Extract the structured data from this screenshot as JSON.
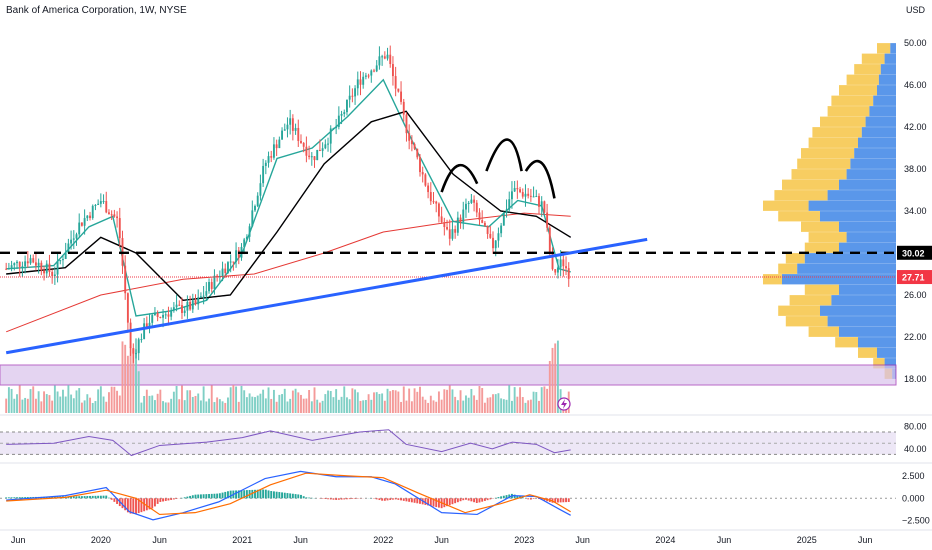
{
  "chart_data": {
    "type": "candlestick",
    "title": "Bank of America Corporation, 1W, NYSE",
    "currency": "USD",
    "x_axis": {
      "tick_labels": [
        "Jun",
        "2020",
        "Jun",
        "2021",
        "Jun",
        "2022",
        "Jun",
        "2023",
        "Jun",
        "2024",
        "Jun",
        "2025",
        "Jun"
      ],
      "tick_dates": [
        "2019-06-01",
        "2020-01-01",
        "2020-06-01",
        "2021-01-01",
        "2021-06-01",
        "2022-01-01",
        "2022-06-01",
        "2023-01-01",
        "2023-06-01",
        "2024-01-01",
        "2024-06-01",
        "2025-01-01",
        "2025-06-01"
      ]
    },
    "price_axis": {
      "ticks": [
        18.0,
        22.0,
        26.0,
        30.02,
        34.0,
        38.0,
        42.0,
        46.0,
        50.0
      ],
      "tick_labels": [
        "18.00",
        "22.00",
        "26.00",
        "30.02",
        "34.00",
        "38.00",
        "42.00",
        "46.00",
        "50.00"
      ],
      "ylim": [
        17,
        50.5
      ]
    },
    "price_series": [
      {
        "date": "2019-05-01",
        "close": 28.5
      },
      {
        "date": "2019-07-01",
        "close": 29.5
      },
      {
        "date": "2019-09-01",
        "close": 28.0
      },
      {
        "date": "2019-11-01",
        "close": 32.5
      },
      {
        "date": "2020-01-01",
        "close": 35.0
      },
      {
        "date": "2020-02-15",
        "close": 33.0
      },
      {
        "date": "2020-03-20",
        "close": 20.0
      },
      {
        "date": "2020-05-01",
        "close": 23.5
      },
      {
        "date": "2020-07-01",
        "close": 24.5
      },
      {
        "date": "2020-09-01",
        "close": 25.0
      },
      {
        "date": "2020-11-01",
        "close": 28.0
      },
      {
        "date": "2021-01-01",
        "close": 30.5
      },
      {
        "date": "2021-03-01",
        "close": 38.5
      },
      {
        "date": "2021-05-01",
        "close": 42.5
      },
      {
        "date": "2021-07-01",
        "close": 39.0
      },
      {
        "date": "2021-09-01",
        "close": 42.0
      },
      {
        "date": "2021-11-01",
        "close": 46.5
      },
      {
        "date": "2022-01-10",
        "close": 49.0
      },
      {
        "date": "2022-03-01",
        "close": 42.0
      },
      {
        "date": "2022-05-01",
        "close": 35.5
      },
      {
        "date": "2022-06-20",
        "close": 31.5
      },
      {
        "date": "2022-08-15",
        "close": 35.0
      },
      {
        "date": "2022-10-10",
        "close": 30.5
      },
      {
        "date": "2022-12-01",
        "close": 36.0
      },
      {
        "date": "2023-01-15",
        "close": 35.5
      },
      {
        "date": "2023-02-20",
        "close": 34.5
      },
      {
        "date": "2023-03-15",
        "close": 28.0
      },
      {
        "date": "2023-04-10",
        "close": 29.2
      },
      {
        "date": "2023-05-01",
        "close": 27.8
      }
    ],
    "ma_fast": [
      {
        "date": "2019-05-01",
        "v": 28.5
      },
      {
        "date": "2019-09-01",
        "v": 28.8
      },
      {
        "date": "2019-12-01",
        "v": 32.5
      },
      {
        "date": "2020-02-01",
        "v": 33.5
      },
      {
        "date": "2020-04-01",
        "v": 24.0
      },
      {
        "date": "2020-07-01",
        "v": 24.5
      },
      {
        "date": "2020-10-01",
        "v": 25.5
      },
      {
        "date": "2021-01-01",
        "v": 30.0
      },
      {
        "date": "2021-04-01",
        "v": 39.0
      },
      {
        "date": "2021-07-01",
        "v": 40.0
      },
      {
        "date": "2021-10-01",
        "v": 43.0
      },
      {
        "date": "2022-01-01",
        "v": 46.5
      },
      {
        "date": "2022-04-01",
        "v": 39.5
      },
      {
        "date": "2022-07-01",
        "v": 33.0
      },
      {
        "date": "2022-10-01",
        "v": 32.5
      },
      {
        "date": "2022-12-15",
        "v": 35.0
      },
      {
        "date": "2023-02-15",
        "v": 34.5
      },
      {
        "date": "2023-04-01",
        "v": 28.5
      },
      {
        "date": "2023-05-01",
        "v": 28.2
      }
    ],
    "ma_mid": [
      {
        "date": "2019-05-01",
        "v": 28.0
      },
      {
        "date": "2019-10-01",
        "v": 28.6
      },
      {
        "date": "2020-01-01",
        "v": 31.5
      },
      {
        "date": "2020-04-01",
        "v": 30.0
      },
      {
        "date": "2020-08-01",
        "v": 25.5
      },
      {
        "date": "2020-12-01",
        "v": 26.0
      },
      {
        "date": "2021-04-01",
        "v": 32.0
      },
      {
        "date": "2021-08-01",
        "v": 38.5
      },
      {
        "date": "2021-12-01",
        "v": 42.5
      },
      {
        "date": "2022-03-01",
        "v": 43.5
      },
      {
        "date": "2022-07-01",
        "v": 37.5
      },
      {
        "date": "2022-11-01",
        "v": 34.0
      },
      {
        "date": "2023-02-01",
        "v": 33.5
      },
      {
        "date": "2023-05-01",
        "v": 31.5
      }
    ],
    "ma_slow": [
      {
        "date": "2019-05-01",
        "v": 22.5
      },
      {
        "date": "2020-01-01",
        "v": 26.0
      },
      {
        "date": "2020-08-01",
        "v": 27.5
      },
      {
        "date": "2021-02-01",
        "v": 28.0
      },
      {
        "date": "2021-08-01",
        "v": 30.0
      },
      {
        "date": "2022-01-01",
        "v": 32.0
      },
      {
        "date": "2022-07-01",
        "v": 33.0
      },
      {
        "date": "2023-01-01",
        "v": 33.8
      },
      {
        "date": "2023-05-01",
        "v": 33.5
      }
    ],
    "trendline": {
      "from": {
        "date": "2019-05-01",
        "v": 20.5
      },
      "to": {
        "date": "2023-11-15",
        "v": 31.3
      }
    },
    "horizontal_levels": [
      {
        "value": 30.02,
        "label": "30.02",
        "style": "dashed",
        "color": "#000000"
      },
      {
        "value": 27.71,
        "label": "27.71",
        "style": "solid",
        "color": "#f23645"
      }
    ],
    "volume_profile": [
      {
        "price": 49.5,
        "up": 0.1,
        "down": 0.03
      },
      {
        "price": 48.5,
        "up": 0.18,
        "down": 0.06
      },
      {
        "price": 47.5,
        "up": 0.22,
        "down": 0.08
      },
      {
        "price": 46.5,
        "up": 0.26,
        "down": 0.09
      },
      {
        "price": 45.5,
        "up": 0.3,
        "down": 0.1
      },
      {
        "price": 44.5,
        "up": 0.34,
        "down": 0.12
      },
      {
        "price": 43.5,
        "up": 0.36,
        "down": 0.14
      },
      {
        "price": 42.5,
        "up": 0.4,
        "down": 0.16
      },
      {
        "price": 41.5,
        "up": 0.44,
        "down": 0.18
      },
      {
        "price": 40.5,
        "up": 0.46,
        "down": 0.2
      },
      {
        "price": 39.5,
        "up": 0.5,
        "down": 0.22
      },
      {
        "price": 38.5,
        "up": 0.52,
        "down": 0.24
      },
      {
        "price": 37.5,
        "up": 0.55,
        "down": 0.26
      },
      {
        "price": 36.5,
        "up": 0.6,
        "down": 0.3
      },
      {
        "price": 35.5,
        "up": 0.64,
        "down": 0.36
      },
      {
        "price": 34.5,
        "up": 0.7,
        "down": 0.46
      },
      {
        "price": 33.5,
        "up": 0.62,
        "down": 0.4
      },
      {
        "price": 32.5,
        "up": 0.5,
        "down": 0.3
      },
      {
        "price": 31.5,
        "up": 0.46,
        "down": 0.26
      },
      {
        "price": 30.5,
        "up": 0.48,
        "down": 0.3
      },
      {
        "price": 29.5,
        "up": 0.58,
        "down": 0.48
      },
      {
        "price": 28.5,
        "up": 0.62,
        "down": 0.52
      },
      {
        "price": 27.5,
        "up": 0.7,
        "down": 0.6
      },
      {
        "price": 26.5,
        "up": 0.48,
        "down": 0.3
      },
      {
        "price": 25.5,
        "up": 0.56,
        "down": 0.34
      },
      {
        "price": 24.5,
        "up": 0.62,
        "down": 0.4
      },
      {
        "price": 23.5,
        "up": 0.58,
        "down": 0.36
      },
      {
        "price": 22.5,
        "up": 0.46,
        "down": 0.3
      },
      {
        "price": 21.5,
        "up": 0.32,
        "down": 0.2
      },
      {
        "price": 20.5,
        "up": 0.2,
        "down": 0.1
      },
      {
        "price": 19.5,
        "up": 0.12,
        "down": 0.06
      },
      {
        "price": 18.5,
        "up": 0.06,
        "down": 0.02
      }
    ],
    "rsi_panel": {
      "ticks": [
        80.0,
        40.0
      ],
      "tick_labels": [
        "80.00",
        "40.00"
      ],
      "ylim": [
        20,
        95
      ],
      "series": [
        {
          "date": "2019-05-01",
          "v": 48
        },
        {
          "date": "2019-09-01",
          "v": 50
        },
        {
          "date": "2019-12-01",
          "v": 62
        },
        {
          "date": "2020-02-01",
          "v": 55
        },
        {
          "date": "2020-03-20",
          "v": 28
        },
        {
          "date": "2020-06-01",
          "v": 46
        },
        {
          "date": "2020-10-01",
          "v": 52
        },
        {
          "date": "2021-01-01",
          "v": 60
        },
        {
          "date": "2021-03-15",
          "v": 72
        },
        {
          "date": "2021-07-01",
          "v": 55
        },
        {
          "date": "2021-11-01",
          "v": 70
        },
        {
          "date": "2022-01-15",
          "v": 74
        },
        {
          "date": "2022-03-01",
          "v": 48
        },
        {
          "date": "2022-06-01",
          "v": 35
        },
        {
          "date": "2022-08-15",
          "v": 50
        },
        {
          "date": "2022-10-10",
          "v": 40
        },
        {
          "date": "2022-12-01",
          "v": 52
        },
        {
          "date": "2023-02-01",
          "v": 48
        },
        {
          "date": "2023-03-20",
          "v": 33
        },
        {
          "date": "2023-05-01",
          "v": 38
        }
      ]
    },
    "macd_panel": {
      "ticks": [
        2.5,
        0,
        -2.5
      ],
      "tick_labels": [
        "2.500",
        "0.000",
        "−2.500"
      ],
      "ylim": [
        -3.2,
        3.6
      ],
      "macd": [
        {
          "date": "2019-05-01",
          "v": -0.2
        },
        {
          "date": "2019-10-01",
          "v": 0.3
        },
        {
          "date": "2020-01-15",
          "v": 1.2
        },
        {
          "date": "2020-03-15",
          "v": -1.5
        },
        {
          "date": "2020-05-15",
          "v": -2.4
        },
        {
          "date": "2020-08-01",
          "v": -1.6
        },
        {
          "date": "2020-11-01",
          "v": -0.4
        },
        {
          "date": "2021-03-01",
          "v": 2.2
        },
        {
          "date": "2021-06-01",
          "v": 3.0
        },
        {
          "date": "2021-09-01",
          "v": 2.4
        },
        {
          "date": "2021-12-01",
          "v": 2.4
        },
        {
          "date": "2022-02-01",
          "v": 1.6
        },
        {
          "date": "2022-06-01",
          "v": -1.6
        },
        {
          "date": "2022-09-01",
          "v": -1.8
        },
        {
          "date": "2022-12-01",
          "v": 0.3
        },
        {
          "date": "2023-02-01",
          "v": 0.2
        },
        {
          "date": "2023-04-01",
          "v": -1.2
        },
        {
          "date": "2023-05-01",
          "v": -1.9
        }
      ],
      "signal": [
        {
          "date": "2019-05-01",
          "v": -0.3
        },
        {
          "date": "2019-10-01",
          "v": 0.1
        },
        {
          "date": "2020-01-15",
          "v": 0.9
        },
        {
          "date": "2020-04-01",
          "v": 0.0
        },
        {
          "date": "2020-06-01",
          "v": -1.8
        },
        {
          "date": "2020-09-01",
          "v": -1.6
        },
        {
          "date": "2020-12-01",
          "v": -0.6
        },
        {
          "date": "2021-03-15",
          "v": 1.5
        },
        {
          "date": "2021-06-15",
          "v": 2.8
        },
        {
          "date": "2021-10-01",
          "v": 2.5
        },
        {
          "date": "2022-01-01",
          "v": 2.3
        },
        {
          "date": "2022-04-01",
          "v": 0.6
        },
        {
          "date": "2022-08-01",
          "v": -1.6
        },
        {
          "date": "2022-11-01",
          "v": -0.6
        },
        {
          "date": "2023-01-15",
          "v": 0.4
        },
        {
          "date": "2023-03-15",
          "v": -0.3
        },
        {
          "date": "2023-05-01",
          "v": -1.5
        }
      ]
    }
  }
}
